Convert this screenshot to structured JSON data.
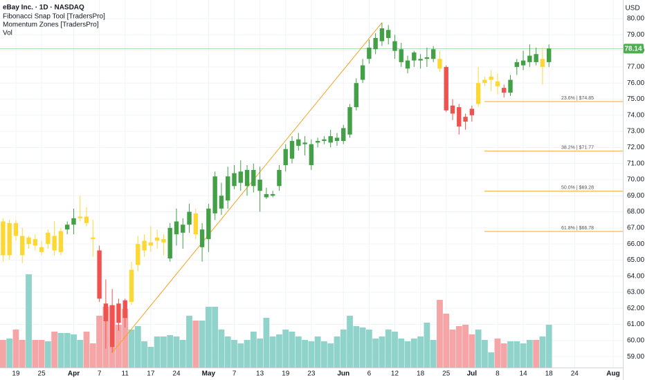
{
  "chart_data": {
    "type": "candlestick",
    "title": "eBay Inc. · 1D · NASDAQ",
    "indicators": [
      "Fibonacci Snap Tool [TradersPro]",
      "Momentum Zones [TradersPro]",
      "Vol"
    ],
    "currency": "USD",
    "categories": [
      null,
      null,
      "19",
      null,
      null,
      null,
      "25",
      null,
      null,
      null,
      null,
      "Apr",
      null,
      null,
      null,
      "7",
      null,
      null,
      null,
      "11",
      null,
      null,
      null,
      "17",
      null,
      null,
      null,
      "24",
      null,
      null,
      null,
      null,
      "May",
      null,
      null,
      null,
      "7",
      null,
      null,
      null,
      "13",
      null,
      null,
      null,
      "19",
      null,
      null,
      null,
      "23",
      null,
      null,
      null,
      null,
      "Jun",
      null,
      null,
      null,
      "6",
      null,
      null,
      null,
      "12",
      null,
      null,
      null,
      "18",
      null,
      null,
      null,
      "25",
      null,
      null,
      null,
      "Jul",
      null,
      null,
      null,
      "8",
      null,
      null,
      null,
      "14",
      null,
      null,
      null,
      "18",
      null,
      null,
      null,
      "24",
      null,
      null,
      null,
      null,
      null,
      "Aug"
    ],
    "open": [
      67.4,
      65.3,
      67.3,
      66.5,
      66.0,
      66.3,
      65.8,
      66.0,
      66.5,
      65.5,
      66.9,
      67.2,
      67.6,
      67.7,
      66.4,
      65.6,
      62.3,
      62.2,
      62.3,
      62.5,
      62.4,
      64.7,
      65.6,
      65.9,
      66.2,
      66.1,
      65.1,
      66.6,
      66.7,
      67.2,
      67.9,
      65.8,
      66.3,
      67.9,
      68.2,
      68.7,
      69.6,
      69.8,
      69.6,
      69.6,
      69.3,
      68.9,
      69.0,
      69.6,
      70.9,
      71.3,
      72.1,
      72.2,
      70.9,
      72.3,
      72.4,
      72.3,
      72.4,
      72.4,
      72.8,
      74.5,
      76.2,
      77.5,
      78.1,
      78.6,
      78.8,
      78.0,
      77.3,
      76.9,
      77.4,
      77.4,
      77.5,
      77.5,
      77.5,
      77.0,
      74.6,
      74.5,
      73.9,
      74.4,
      74.7,
      76.0,
      76.2,
      76.1,
      75.7,
      75.4,
      77.0,
      77.1,
      77.3,
      77.8,
      77.0,
      77.3,
      null,
      null,
      null,
      null,
      null,
      null,
      null,
      null,
      null,
      null
    ],
    "high": [
      67.6,
      67.5,
      67.5,
      67.0,
      66.5,
      66.6,
      66.2,
      66.9,
      67.4,
      67.0,
      67.4,
      68.2,
      69.0,
      68.3,
      67.5,
      65.9,
      63.8,
      63.2,
      62.6,
      62.6,
      64.9,
      66.5,
      66.6,
      67.1,
      66.9,
      66.6,
      67.3,
      68.2,
      67.6,
      68.5,
      68.2,
      67.3,
      68.5,
      70.5,
      69.8,
      70.8,
      70.9,
      71.2,
      70.9,
      71.0,
      70.8,
      69.5,
      69.3,
      70.9,
      72.2,
      72.7,
      72.9,
      72.7,
      72.5,
      72.6,
      72.7,
      73.1,
      72.9,
      73.4,
      74.7,
      76.3,
      77.5,
      78.7,
      79.1,
      79.75,
      79.6,
      79.0,
      78.5,
      77.7,
      78.0,
      77.8,
      78.2,
      78.3,
      78.0,
      77.1,
      75.0,
      74.7,
      74.1,
      74.6,
      77.0,
      76.4,
      76.8,
      76.6,
      75.9,
      76.5,
      77.5,
      78.0,
      78.4,
      78.2,
      78.2,
      78.4,
      null,
      null,
      null,
      null,
      null,
      null,
      null,
      null,
      null,
      null
    ],
    "low": [
      64.9,
      65.0,
      66.2,
      64.8,
      65.7,
      65.6,
      65.3,
      65.7,
      65.3,
      65.3,
      66.6,
      66.6,
      67.4,
      67.1,
      65.2,
      62.4,
      59.5,
      59.25,
      60.6,
      60.8,
      62.2,
      64.3,
      65.2,
      65.5,
      65.7,
      65.3,
      64.9,
      65.9,
      65.7,
      66.7,
      66.3,
      64.9,
      65.5,
      67.5,
      67.8,
      68.2,
      69.4,
      69.3,
      69.0,
      69.2,
      68.0,
      68.8,
      68.9,
      69.3,
      70.5,
      71.0,
      71.8,
      71.5,
      70.6,
      72.0,
      72.2,
      72.0,
      72.1,
      72.2,
      72.6,
      74.3,
      76.0,
      77.2,
      77.8,
      78.3,
      78.4,
      77.5,
      77.0,
      76.6,
      77.0,
      76.9,
      77.0,
      77.3,
      76.7,
      74.2,
      73.7,
      72.8,
      73.1,
      73.6,
      74.5,
      75.8,
      75.5,
      75.3,
      75.1,
      75.2,
      76.5,
      76.8,
      77.0,
      77.1,
      75.9,
      77.0,
      null,
      null,
      null,
      null,
      null,
      null,
      null,
      null,
      null,
      null
    ],
    "close": [
      65.3,
      67.3,
      66.5,
      65.3,
      66.4,
      65.9,
      65.5,
      66.7,
      65.6,
      66.8,
      67.2,
      67.6,
      67.7,
      67.3,
      66.3,
      62.6,
      61.2,
      59.6,
      61.1,
      61.4,
      64.4,
      66.0,
      66.2,
      66.1,
      66.4,
      66.3,
      67.0,
      67.4,
      67.2,
      68.0,
      66.6,
      66.9,
      68.2,
      70.2,
      69.0,
      70.2,
      70.4,
      70.5,
      70.6,
      70.6,
      70.0,
      69.1,
      69.1,
      70.6,
      71.9,
      72.4,
      72.5,
      72.3,
      72.2,
      72.4,
      72.5,
      72.7,
      72.6,
      73.2,
      74.5,
      76.0,
      77.1,
      78.2,
      78.8,
      79.4,
      79.3,
      78.6,
      78.1,
      77.4,
      77.9,
      77.5,
      77.6,
      78.1,
      76.9,
      74.3,
      74.1,
      73.3,
      73.6,
      74.0,
      76.0,
      76.2,
      76.4,
      75.8,
      75.4,
      76.2,
      77.3,
      77.4,
      77.7,
      77.3,
      77.5,
      78.14,
      null,
      null,
      null,
      null,
      null,
      null,
      null,
      null,
      null,
      null
    ],
    "zone": [
      "yellow",
      "yellow",
      "yellow",
      "yellow",
      "yellow",
      "yellow",
      "yellow",
      "yellow",
      "yellow",
      "yellow",
      "green",
      "green",
      "yellow",
      "yellow",
      "yellow",
      "red",
      "red",
      "red",
      "red",
      "red",
      "yellow",
      "yellow",
      "yellow",
      "yellow",
      "yellow",
      "yellow",
      "green",
      "green",
      "green",
      "green",
      "yellow",
      "green",
      "green",
      "green",
      "green",
      "green",
      "green",
      "green",
      "green",
      "green",
      "green",
      "green",
      "green",
      "green",
      "green",
      "green",
      "green",
      "green",
      "green",
      "green",
      "green",
      "green",
      "green",
      "green",
      "green",
      "green",
      "green",
      "green",
      "green",
      "green",
      "green",
      "green",
      "green",
      "green",
      "green",
      "green",
      "green",
      "green",
      "yellow",
      "red",
      "red",
      "red",
      "red",
      "red",
      "yellow",
      "yellow",
      "yellow",
      "yellow",
      "red",
      "green",
      "green",
      "green",
      "green",
      "green",
      "yellow",
      "green",
      null,
      null,
      null,
      null,
      null,
      null,
      null,
      null,
      null,
      null
    ],
    "zone_colors": {
      "green": "#43a047",
      "red": "#ef5350",
      "yellow": "#fdd835"
    },
    "volume": [
      40,
      42,
      55,
      40,
      135,
      40,
      40,
      38,
      52,
      50,
      50,
      48,
      40,
      52,
      35,
      75,
      88,
      90,
      62,
      85,
      55,
      60,
      38,
      30,
      45,
      45,
      47,
      45,
      40,
      75,
      68,
      68,
      88,
      88,
      55,
      45,
      40,
      35,
      40,
      52,
      42,
      72,
      45,
      48,
      55,
      52,
      45,
      40,
      38,
      45,
      38,
      35,
      45,
      55,
      75,
      60,
      58,
      55,
      42,
      45,
      55,
      52,
      42,
      38,
      42,
      45,
      65,
      40,
      98,
      78,
      55,
      60,
      62,
      48,
      55,
      40,
      22,
      42,
      35,
      38,
      38,
      35,
      40,
      40,
      45,
      62,
      null,
      null,
      null,
      null,
      null,
      null,
      null,
      null,
      null,
      null
    ],
    "volume_colors": {
      "up": "#8fd3cb",
      "down": "#f5a5a5"
    },
    "ylim": [
      58.32,
      81.16
    ],
    "yticks": [
      {
        "value": 59,
        "label": "59.00"
      },
      {
        "value": 60,
        "label": "60.00"
      },
      {
        "value": 61,
        "label": "61.00"
      },
      {
        "value": 62,
        "label": "62.00"
      },
      {
        "value": 63,
        "label": "63.00"
      },
      {
        "value": 64,
        "label": "64.00"
      },
      {
        "value": 65,
        "label": "65.00"
      },
      {
        "value": 66,
        "label": "66.00"
      },
      {
        "value": 67,
        "label": "67.00"
      },
      {
        "value": 68,
        "label": "68.00"
      },
      {
        "value": 69,
        "label": "69.00"
      },
      {
        "value": 70,
        "label": "70.00"
      },
      {
        "value": 71,
        "label": "71.00"
      },
      {
        "value": 72,
        "label": "72.00"
      },
      {
        "value": 73,
        "label": "73.00"
      },
      {
        "value": 74,
        "label": "74.00"
      },
      {
        "value": 75,
        "label": "75.00"
      },
      {
        "value": 76,
        "label": "76.00"
      },
      {
        "value": 77,
        "label": "77.00"
      },
      {
        "value": 78,
        "label": "78.00"
      },
      {
        "value": 79,
        "label": "79.00"
      },
      {
        "value": 80,
        "label": "80.00"
      }
    ],
    "grid": true,
    "last_price_color": "#4caf50",
    "trend_line": {
      "x": [
        17,
        59
      ],
      "y": [
        59.25,
        79.75
      ],
      "color": "#f7a21b"
    },
    "fib_color": "#f5a623",
    "fib_levels": [
      {
        "value": 74.85,
        "label": "23.6% | $74.85"
      },
      {
        "value": 71.77,
        "label": "38.2% | $71.77"
      },
      {
        "value": 69.28,
        "label": "50.0% | $69.28"
      },
      {
        "value": 66.78,
        "label": "61.8% | $66.78"
      }
    ]
  }
}
